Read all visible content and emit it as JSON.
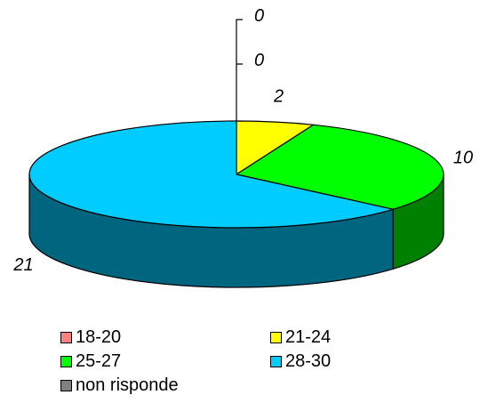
{
  "chart_data": {
    "type": "pie",
    "title": "",
    "categories": [
      "18-20",
      "21-24",
      "25-27",
      "28-30",
      "non risponde"
    ],
    "values": [
      0,
      2,
      10,
      21,
      0
    ],
    "labels": [
      "0",
      "2",
      "10",
      "21",
      "0"
    ],
    "colors": [
      "#FF8080",
      "#FFFF00",
      "#00FF00",
      "#00CCFF",
      "#808080"
    ],
    "side_colors": [
      "#804040",
      "#808000",
      "#008000",
      "#006680",
      "#404040"
    ],
    "style": "3d-exploded-tilted",
    "legend_position": "bottom"
  }
}
